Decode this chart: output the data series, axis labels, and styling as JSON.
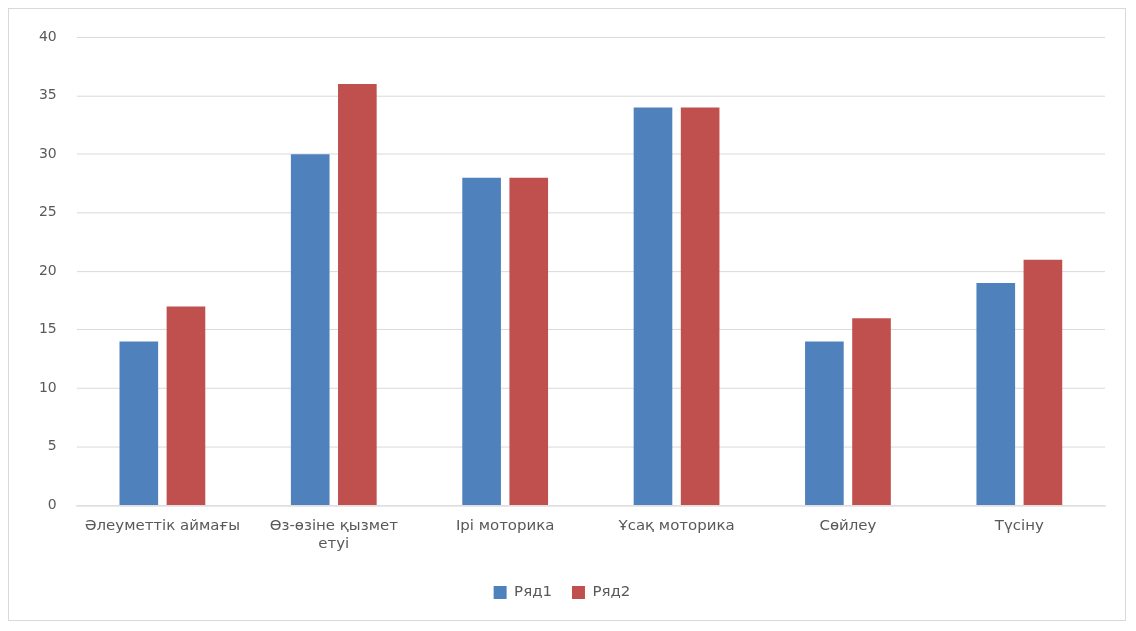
{
  "chart_data": {
    "type": "bar",
    "categories": [
      "Әлеуметтік аймағы",
      "Өз-өзіне қызмет етуі",
      "Ірі моторика",
      "Ұсақ моторика",
      "Сөйлеу",
      "Түсіну"
    ],
    "series": [
      {
        "name": "Ряд1",
        "color": "#4f81bd",
        "values": [
          14,
          30,
          28,
          34,
          14,
          19
        ]
      },
      {
        "name": "Ряд2",
        "color": "#c0504d",
        "values": [
          17,
          36,
          28,
          34,
          16,
          21
        ]
      }
    ],
    "ylim": [
      0,
      40
    ],
    "yticks": [
      0,
      5,
      10,
      15,
      20,
      25,
      30,
      35,
      40
    ],
    "grid": "y",
    "legend": "bottom"
  }
}
